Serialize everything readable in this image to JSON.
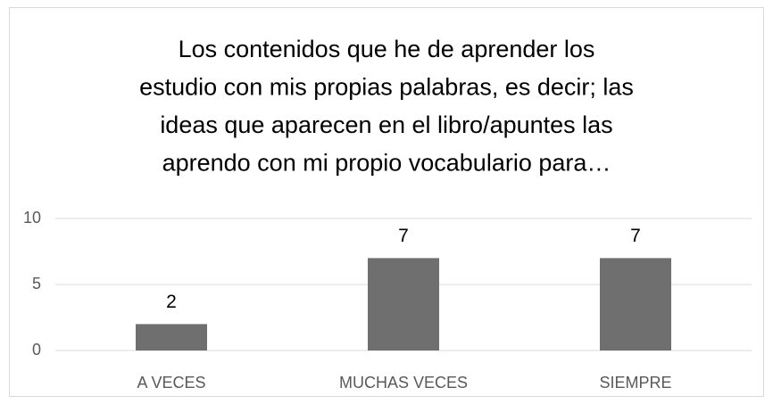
{
  "chart_data": {
    "type": "bar",
    "title": [
      "Los contenidos que he de aprender los",
      "estudio con mis propias palabras, es decir; las",
      "ideas que aparecen en el libro/apuntes las",
      "aprendo con mi propio vocabulario para…"
    ],
    "categories": [
      "A VECES",
      "MUCHAS VECES",
      "SIEMPRE"
    ],
    "values": [
      2,
      7,
      7
    ],
    "color": "#6f6f6f",
    "ylim": [
      0,
      10
    ],
    "yticks": [
      0,
      5,
      10
    ],
    "grid": true
  }
}
